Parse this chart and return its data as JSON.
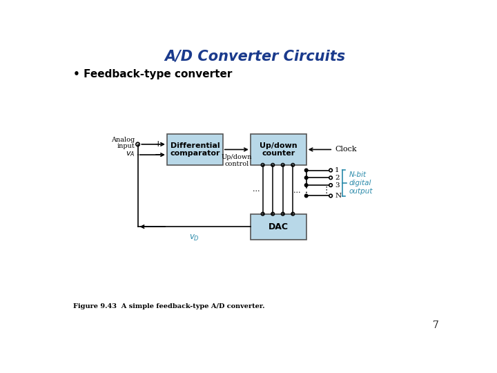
{
  "title": "A/D Converter Circuits",
  "title_color": "#1a3a8c",
  "title_fontsize": 15,
  "bullet_text": "• Feedback-type converter",
  "bullet_fontsize": 11,
  "figure_caption": "Figure 9.43  A simple feedback-type A/D converter.",
  "page_number": "7",
  "bg_color": "#ffffff",
  "box_fill": "#b8d8e8",
  "box_edge": "#555555",
  "comp_label1": "Differential",
  "comp_label2": "comparator",
  "counter_label1": "Up/down",
  "counter_label2": "counter",
  "dac_label": "DAC",
  "clock_label": "Clock",
  "updown_ctrl_label1": "Up/down",
  "updown_ctrl_label2": "control",
  "nbit_label1": "N-bit",
  "nbit_label2": "digital",
  "nbit_label3": "output",
  "nbit_color": "#2a8aaa",
  "output_numbers": [
    "1",
    "2",
    "3",
    "N"
  ],
  "dots_text": "...",
  "vdots_text": "⋮"
}
